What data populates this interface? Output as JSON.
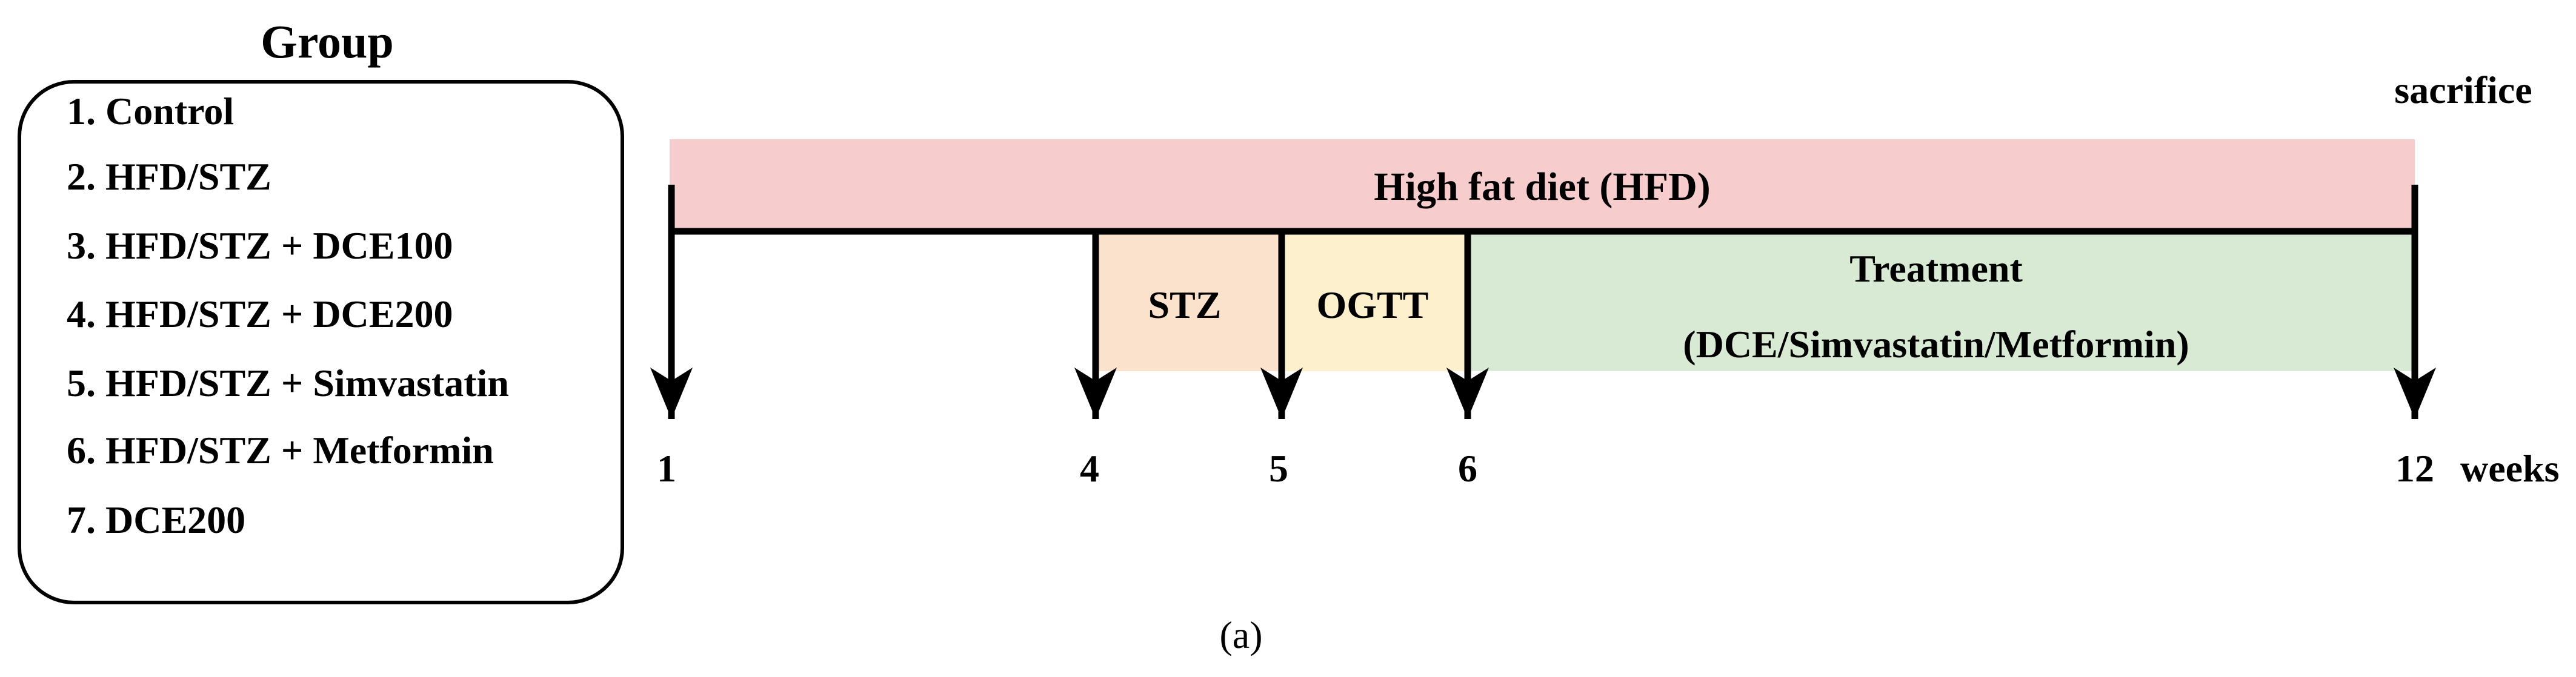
{
  "group_panel": {
    "title": "Group",
    "items": [
      "1. Control",
      "2. HFD/STZ",
      "3. HFD/STZ + DCE100",
      "4. HFD/STZ + DCE200",
      "5. HFD/STZ + Simvastatin",
      "6. HFD/STZ + Metformin",
      "7. DCE200"
    ]
  },
  "timeline": {
    "sacrifice_label": "sacrifice",
    "hfd_label": "High fat diet (HFD)",
    "stz_label": "STZ",
    "ogtt_label": "OGTT",
    "treatment_label_line1": "Treatment",
    "treatment_label_line2": "(DCE/Simvastatin/Metformin)",
    "ticks": [
      "1",
      "4",
      "5",
      "6",
      "12"
    ],
    "unit_label": "weeks",
    "colors": {
      "hfd": "#f6cccc",
      "stz": "#fbe2cc",
      "ogtt": "#fdf0cc",
      "treatment": "#d8ead3"
    }
  },
  "caption": "(a)"
}
